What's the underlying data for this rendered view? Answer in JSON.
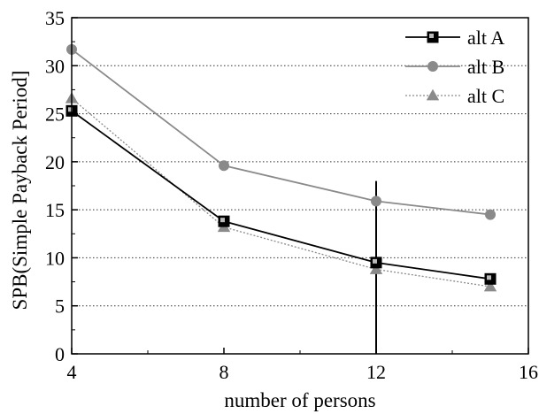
{
  "chart_data": {
    "type": "line",
    "xlabel": "number of persons",
    "ylabel": "SPB(Simple Payback Period]",
    "xlim": [
      4,
      16
    ],
    "ylim": [
      0,
      35
    ],
    "xticks": [
      4,
      8,
      12,
      16
    ],
    "yticks": [
      0,
      5,
      10,
      15,
      20,
      25,
      30,
      35
    ],
    "grid": "horizontal dotted",
    "legend_position": "top-right",
    "series": [
      {
        "name": "alt A",
        "marker": "square",
        "color": "#000000",
        "line": "solid",
        "x": [
          4,
          8,
          12,
          15
        ],
        "y": [
          25.3,
          13.8,
          9.5,
          7.8
        ]
      },
      {
        "name": "alt B",
        "marker": "circle",
        "color": "#8a8a8a",
        "line": "solid",
        "x": [
          4,
          8,
          12,
          15
        ],
        "y": [
          31.7,
          19.6,
          15.9,
          14.5
        ]
      },
      {
        "name": "alt C",
        "marker": "triangle",
        "color": "#8a8a8a",
        "line": "dotted",
        "x": [
          4,
          8,
          12,
          15
        ],
        "y": [
          26.6,
          13.2,
          8.8,
          7.0
        ]
      }
    ],
    "annotations": [
      {
        "type": "vertical-line",
        "x": 12,
        "y_from": 0,
        "y_to": 18,
        "color": "#000000"
      }
    ]
  }
}
